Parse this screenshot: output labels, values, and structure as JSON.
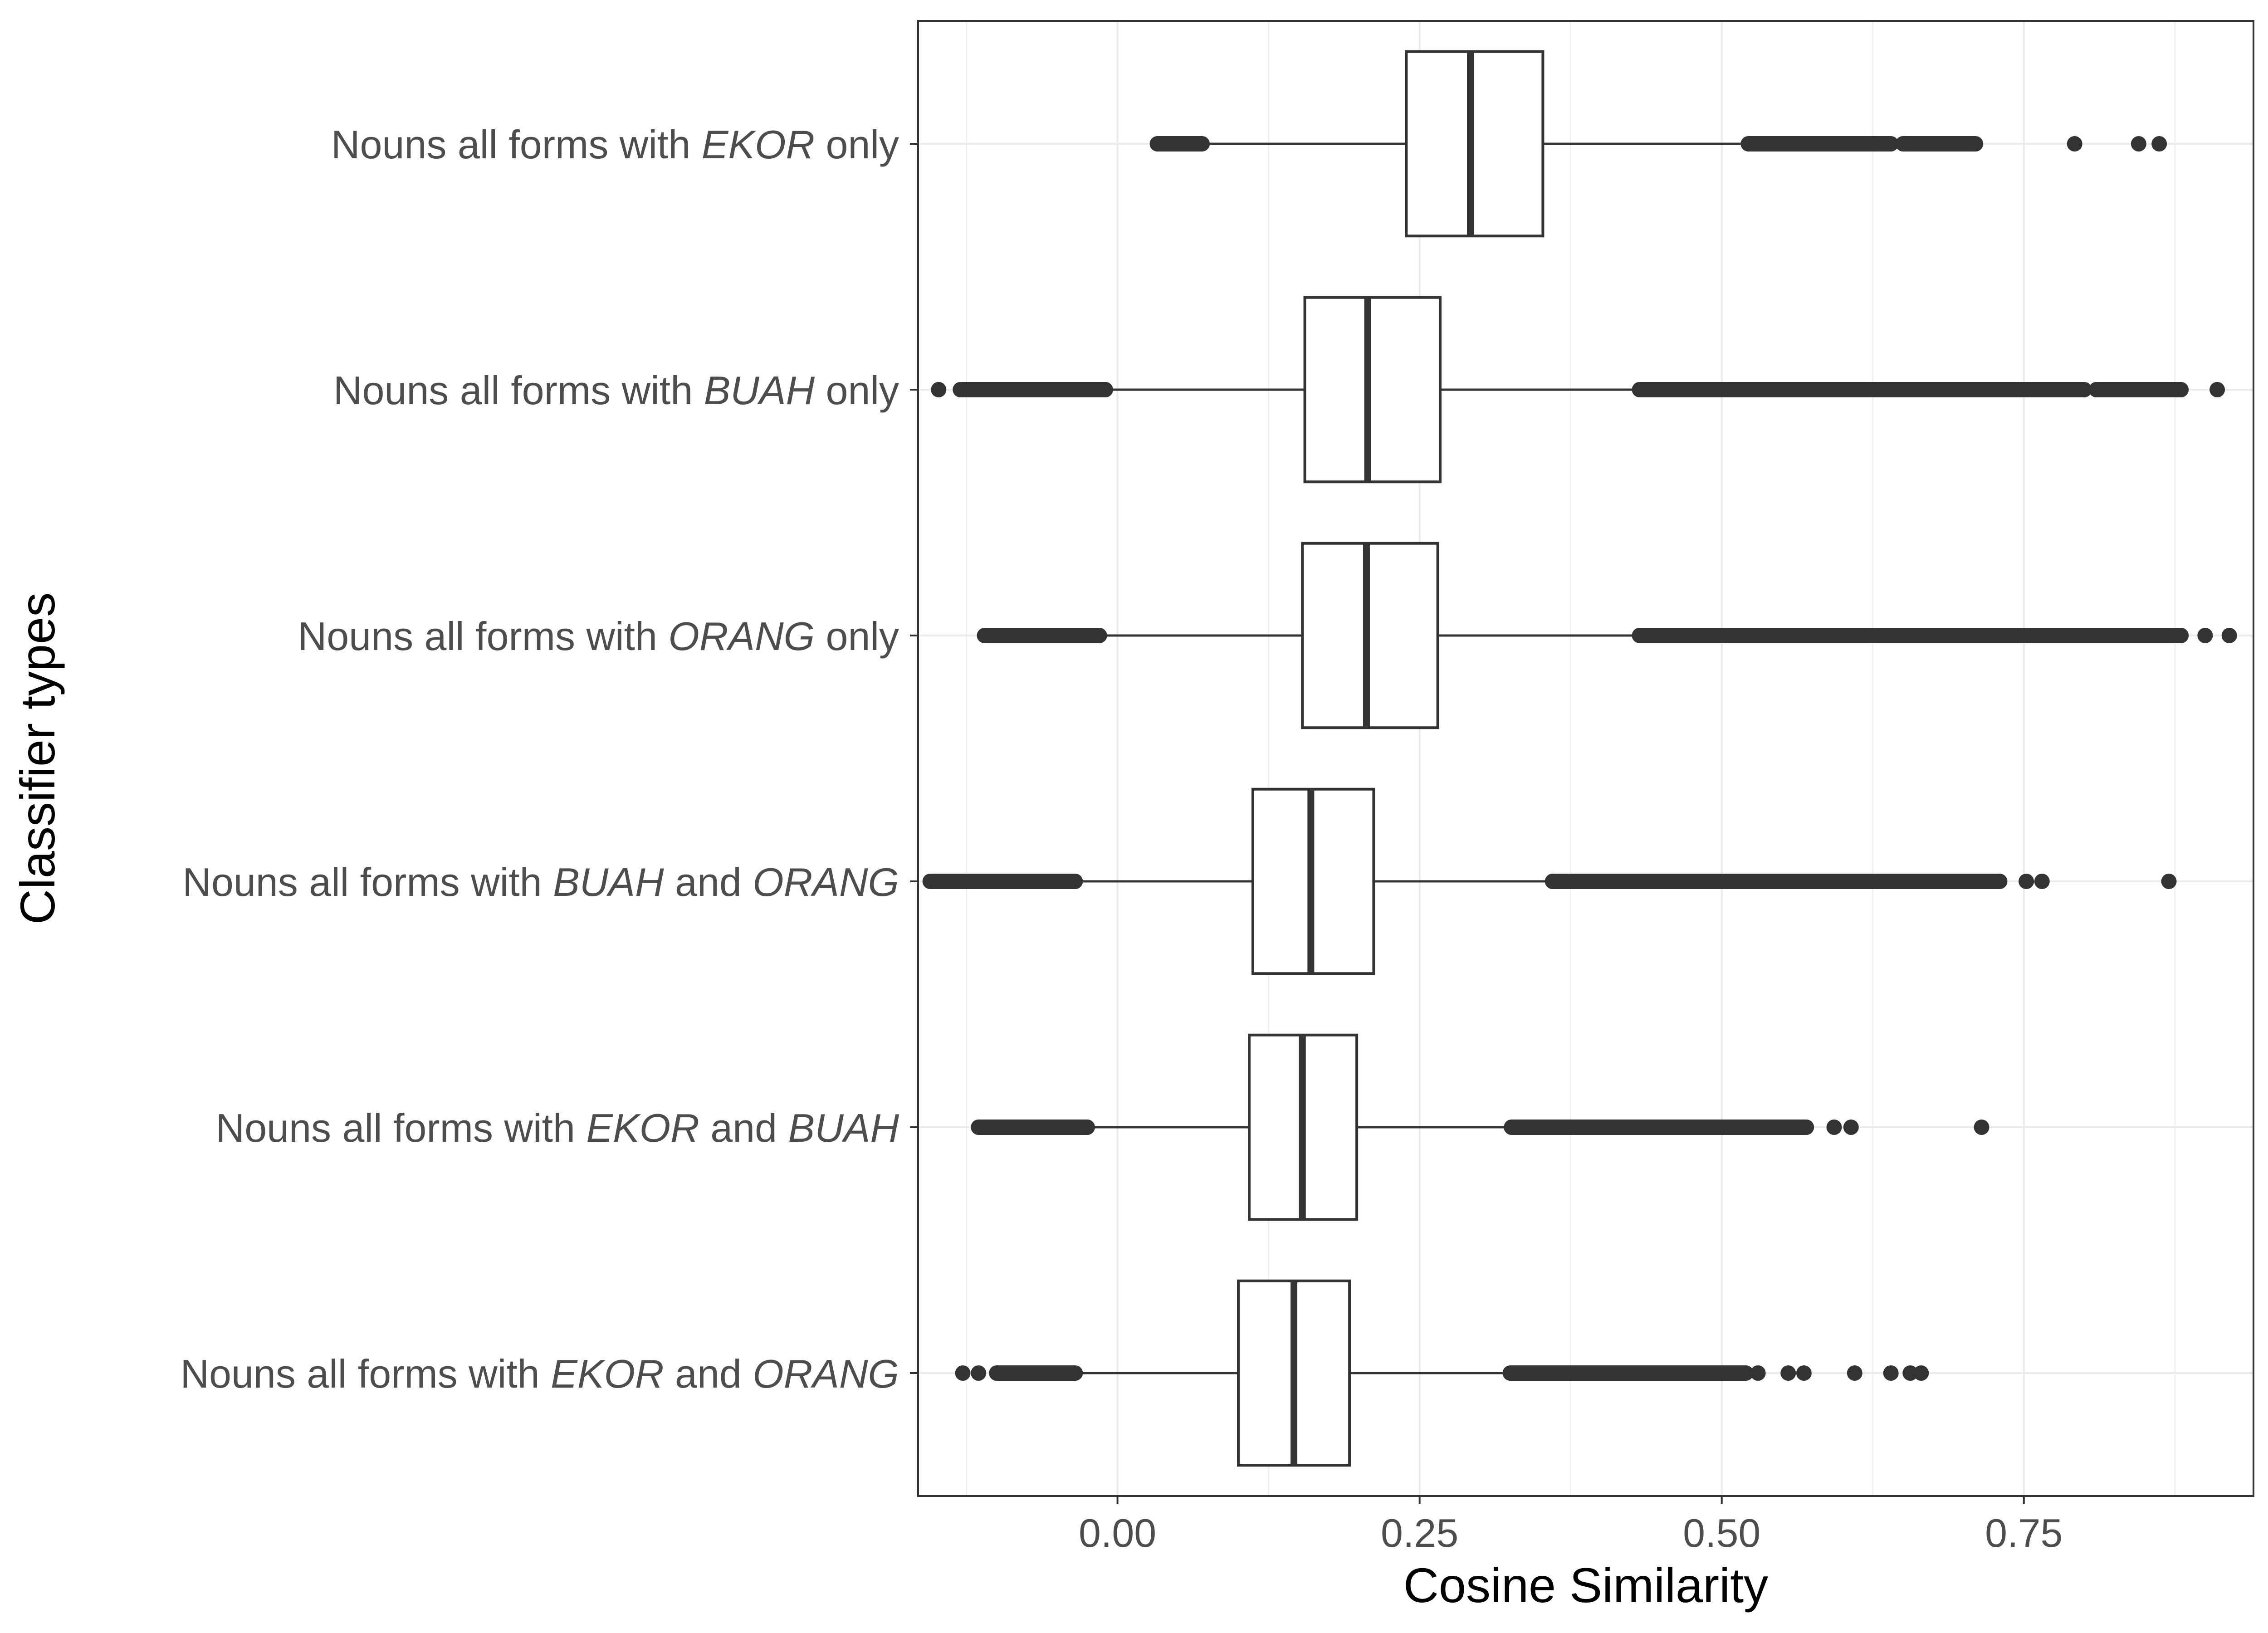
{
  "chart_data": {
    "type": "box",
    "xlabel": "Cosine Similarity",
    "ylabel": "Classifier types",
    "xlim": [
      -0.165,
      0.94
    ],
    "x_ticks": [
      {
        "value": 0.0,
        "label": "0.00"
      },
      {
        "value": 0.25,
        "label": "0.25"
      },
      {
        "value": 0.5,
        "label": "0.50"
      },
      {
        "value": 0.75,
        "label": "0.75"
      }
    ],
    "grid": true,
    "legend": "none",
    "colors": {
      "box_line": "#333333",
      "grid": "#ebebeb",
      "outlier": "#333333",
      "panel_border": "#333333"
    },
    "categories": [
      {
        "label_parts": [
          {
            "text": "Nouns all forms with ",
            "italic": false
          },
          {
            "text": "EKOR",
            "italic": true
          },
          {
            "text": " only",
            "italic": false
          }
        ],
        "whisker_low": 0.04,
        "q1": 0.239,
        "median": 0.292,
        "q3": 0.352,
        "whisker_high": 0.522,
        "outlier_ranges": [
          [
            0.033,
            0.07
          ],
          [
            0.522,
            0.64
          ],
          [
            0.65,
            0.71
          ]
        ],
        "outliers": [
          0.792,
          0.845,
          0.862
        ]
      },
      {
        "label_parts": [
          {
            "text": "Nouns all forms with ",
            "italic": false
          },
          {
            "text": "BUAH",
            "italic": true
          },
          {
            "text": " only",
            "italic": false
          }
        ],
        "whisker_low": -0.01,
        "q1": 0.155,
        "median": 0.207,
        "q3": 0.267,
        "whisker_high": 0.432,
        "outlier_ranges": [
          [
            -0.13,
            -0.01
          ],
          [
            0.432,
            0.8
          ],
          [
            0.81,
            0.88
          ]
        ],
        "outliers": [
          -0.148,
          0.91
        ]
      },
      {
        "label_parts": [
          {
            "text": "Nouns all forms with ",
            "italic": false
          },
          {
            "text": "ORANG",
            "italic": true
          },
          {
            "text": " only",
            "italic": false
          }
        ],
        "whisker_low": -0.015,
        "q1": 0.153,
        "median": 0.206,
        "q3": 0.265,
        "whisker_high": 0.432,
        "outlier_ranges": [
          [
            -0.11,
            -0.015
          ],
          [
            0.432,
            0.8
          ],
          [
            0.8,
            0.88
          ]
        ],
        "outliers": [
          0.9,
          0.92
        ]
      },
      {
        "label_parts": [
          {
            "text": "Nouns all forms with ",
            "italic": false
          },
          {
            "text": "BUAH",
            "italic": true
          },
          {
            "text": " and ",
            "italic": false
          },
          {
            "text": "ORANG",
            "italic": true
          }
        ],
        "whisker_low": -0.035,
        "q1": 0.112,
        "median": 0.16,
        "q3": 0.212,
        "whisker_high": 0.36,
        "outlier_ranges": [
          [
            -0.155,
            -0.035
          ],
          [
            0.36,
            0.73
          ]
        ],
        "outliers": [
          0.752,
          0.765,
          0.87
        ]
      },
      {
        "label_parts": [
          {
            "text": "Nouns all forms with ",
            "italic": false
          },
          {
            "text": "EKOR",
            "italic": true
          },
          {
            "text": " and ",
            "italic": false
          },
          {
            "text": "BUAH",
            "italic": true
          }
        ],
        "whisker_low": -0.025,
        "q1": 0.109,
        "median": 0.153,
        "q3": 0.198,
        "whisker_high": 0.326,
        "outlier_ranges": [
          [
            -0.115,
            -0.025
          ],
          [
            0.326,
            0.57
          ]
        ],
        "outliers": [
          0.593,
          0.607,
          0.715
        ]
      },
      {
        "label_parts": [
          {
            "text": "Nouns all forms with ",
            "italic": false
          },
          {
            "text": "EKOR",
            "italic": true
          },
          {
            "text": " and ",
            "italic": false
          },
          {
            "text": "ORANG",
            "italic": true
          }
        ],
        "whisker_low": -0.035,
        "q1": 0.1,
        "median": 0.146,
        "q3": 0.192,
        "whisker_high": 0.325,
        "outlier_ranges": [
          [
            -0.1,
            -0.035
          ],
          [
            0.325,
            0.52
          ]
        ],
        "outliers": [
          -0.128,
          -0.115,
          0.53,
          0.555,
          0.568,
          0.61,
          0.64,
          0.656,
          0.665
        ]
      }
    ]
  }
}
